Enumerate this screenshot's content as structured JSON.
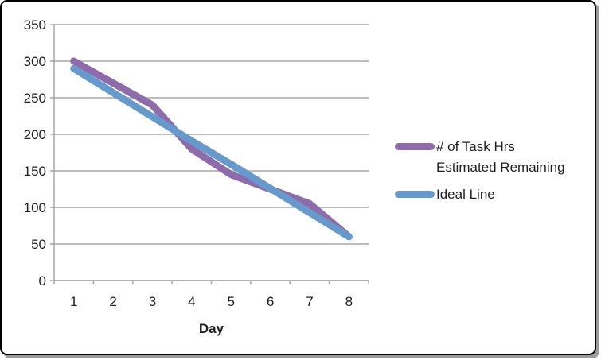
{
  "chart_data": {
    "type": "line",
    "title": "",
    "xlabel": "Day",
    "ylabel": "",
    "categories": [
      "1",
      "2",
      "3",
      "4",
      "5",
      "6",
      "7",
      "8"
    ],
    "series": [
      {
        "name": "# of Task Hrs Estimated Remaining",
        "color": "#8E6CAB",
        "values": [
          300,
          270,
          240,
          180,
          145,
          125,
          105,
          60
        ]
      },
      {
        "name": "Ideal Line",
        "color": "#6699CC",
        "values": [
          290,
          257,
          224,
          191,
          159,
          126,
          93,
          60
        ]
      }
    ],
    "ylim": [
      0,
      350
    ],
    "yticks": [
      0,
      50,
      100,
      150,
      200,
      250,
      300,
      350
    ],
    "grid": true,
    "legend_position": "right",
    "grid_color": "#A6A6A6",
    "axis_color": "#A6A6A6",
    "text_color": "#1f1f1f",
    "line_width": 9
  }
}
